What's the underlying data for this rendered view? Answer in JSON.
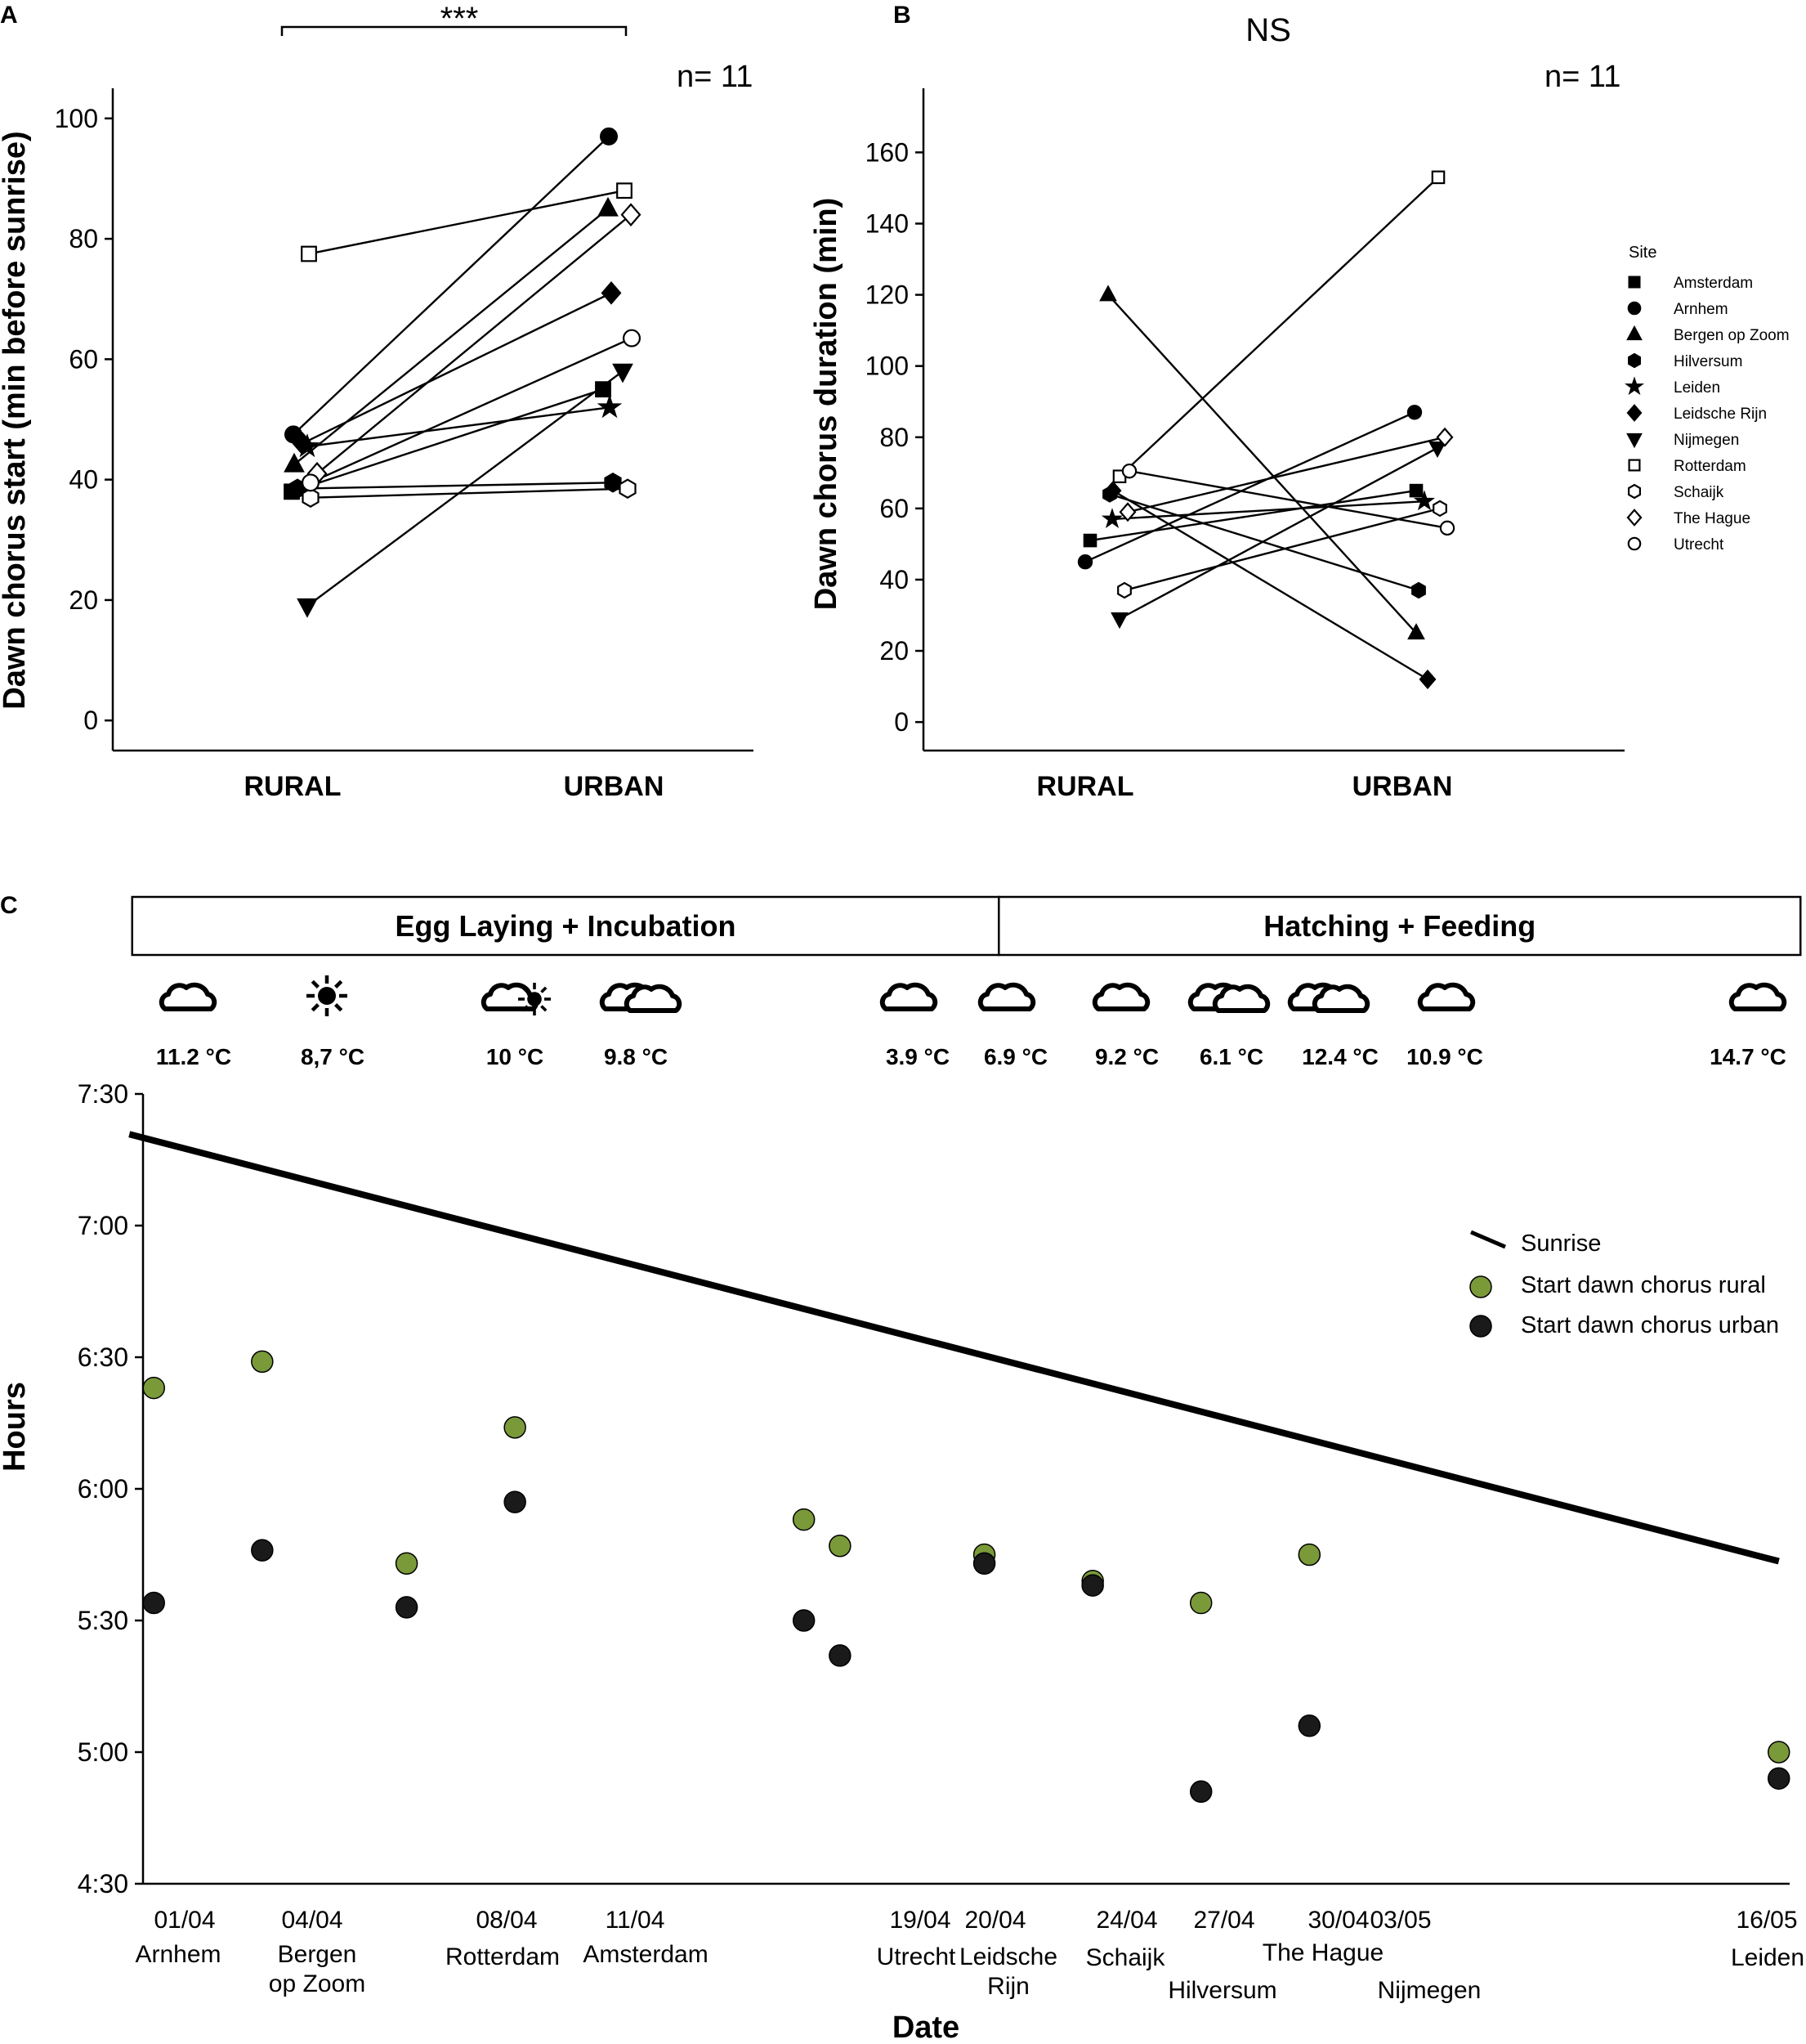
{
  "colors": {
    "ink": "#000000",
    "rural_green": "#7a9a3a",
    "urban_dark": "#1a1a1a",
    "open_fill": "#ffffff"
  },
  "chart_data": [
    {
      "panel": "A",
      "type": "scatter",
      "title": "",
      "xlabel": "",
      "ylabel": "Dawn chorus start (min before sunrise)",
      "categories": [
        "RURAL",
        "URBAN"
      ],
      "ylim": [
        -5,
        105
      ],
      "yticks": [
        0,
        20,
        40,
        60,
        80,
        100
      ],
      "annotation": "n= 11",
      "significance": "***",
      "series": [
        {
          "name": "Amsterdam",
          "marker": "square-filled",
          "values": [
            38,
            55
          ]
        },
        {
          "name": "Arnhem",
          "marker": "circle-filled",
          "values": [
            47.5,
            97
          ]
        },
        {
          "name": "Bergen op Zoom",
          "marker": "triangle-up-filled",
          "values": [
            42.5,
            85
          ]
        },
        {
          "name": "Hilversum",
          "marker": "hexagon-filled",
          "values": [
            38.5,
            39.5
          ]
        },
        {
          "name": "Leiden",
          "marker": "star-filled",
          "values": [
            45.5,
            52
          ]
        },
        {
          "name": "Leidsche Rijn",
          "marker": "diamond-filled",
          "values": [
            46,
            71
          ]
        },
        {
          "name": "Nijmegen",
          "marker": "triangle-down-filled",
          "values": [
            19,
            58
          ]
        },
        {
          "name": "Rotterdam",
          "marker": "square-open",
          "values": [
            77.5,
            88
          ]
        },
        {
          "name": "Schaijk",
          "marker": "hexagon-open",
          "values": [
            37,
            38.5
          ]
        },
        {
          "name": "The Hague",
          "marker": "diamond-open",
          "values": [
            41,
            84
          ]
        },
        {
          "name": "Utrecht",
          "marker": "circle-open",
          "values": [
            39.5,
            63.5
          ]
        }
      ]
    },
    {
      "panel": "B",
      "type": "scatter",
      "title": "NS",
      "xlabel": "",
      "ylabel": "Dawn chorus duration (min)",
      "categories": [
        "RURAL",
        "URBAN"
      ],
      "ylim": [
        -8,
        178
      ],
      "yticks": [
        0,
        20,
        40,
        60,
        80,
        100,
        120,
        140,
        160
      ],
      "annotation": "n= 11",
      "legend_title": "Site",
      "series": [
        {
          "name": "Amsterdam",
          "marker": "square-filled",
          "values": [
            51,
            65
          ]
        },
        {
          "name": "Arnhem",
          "marker": "circle-filled",
          "values": [
            45,
            87
          ]
        },
        {
          "name": "Bergen op Zoom",
          "marker": "triangle-up-filled",
          "values": [
            120,
            25
          ]
        },
        {
          "name": "Hilversum",
          "marker": "hexagon-filled",
          "values": [
            64,
            37
          ]
        },
        {
          "name": "Leiden",
          "marker": "star-filled",
          "values": [
            57,
            62
          ]
        },
        {
          "name": "Leidsche Rijn",
          "marker": "diamond-filled",
          "values": [
            65,
            12
          ]
        },
        {
          "name": "Nijmegen",
          "marker": "triangle-down-filled",
          "values": [
            29,
            77
          ]
        },
        {
          "name": "Rotterdam",
          "marker": "square-open",
          "values": [
            69,
            153
          ]
        },
        {
          "name": "Schaijk",
          "marker": "hexagon-open",
          "values": [
            37,
            60
          ]
        },
        {
          "name": "The Hague",
          "marker": "diamond-open",
          "values": [
            59,
            80
          ]
        },
        {
          "name": "Utrecht",
          "marker": "circle-open",
          "values": [
            70.5,
            54.5
          ]
        }
      ]
    },
    {
      "panel": "C",
      "type": "scatter",
      "title": "",
      "xlabel": "Date",
      "ylabel": "Hours",
      "ylim_minutes": [
        270,
        450
      ],
      "yticks": [
        {
          "min": 270,
          "label": "4:30"
        },
        {
          "min": 300,
          "label": "5:00"
        },
        {
          "min": 330,
          "label": "5:30"
        },
        {
          "min": 360,
          "label": "6:00"
        },
        {
          "min": 390,
          "label": "6:30"
        },
        {
          "min": 420,
          "label": "7:00"
        },
        {
          "min": 450,
          "label": "7:30"
        }
      ],
      "xlim_day": [
        -0.3,
        45.3
      ],
      "phases": [
        {
          "label": "Egg Laying + Incubation",
          "from_day": -0.6,
          "to_day": 23.4
        },
        {
          "label": "Hatching + Feeding",
          "from_day": 23.4,
          "to_day": 45.6
        }
      ],
      "sunrise_line": {
        "name": "Sunrise",
        "day": [
          0,
          45
        ],
        "minutes": [
          438.5,
          343.5
        ]
      },
      "legend": [
        "Sunrise",
        "Start dawn chorus rural",
        "Start dawn chorus urban"
      ],
      "points": [
        {
          "date": "01/04",
          "site": [
            "Arnhem"
          ],
          "day": 0,
          "rural": 383,
          "urban": 334,
          "weather": "cloud",
          "temp": "11.2 °C"
        },
        {
          "date": "04/04",
          "site": [
            "Bergen",
            "op Zoom"
          ],
          "day": 3,
          "rural": 389,
          "urban": 346,
          "weather": "sun",
          "temp": "8,7 °C"
        },
        {
          "date": "08/04",
          "site": [
            "Rotterdam"
          ],
          "day": 7,
          "rural": 343,
          "urban": 333,
          "weather": "partly",
          "temp": "10 °C"
        },
        {
          "date": "11/04",
          "site": [
            "Amsterdam"
          ],
          "day": 10,
          "rural": 374,
          "urban": 357,
          "weather": "clouds2",
          "temp": "9.8 °C"
        },
        {
          "date": "19/04",
          "site": [
            "Utrecht"
          ],
          "day": 18,
          "rural": 353,
          "urban": 330,
          "weather": "cloud",
          "temp": "3.9 °C"
        },
        {
          "date": "20/04",
          "site": [
            "Leidsche",
            "Rijn"
          ],
          "day": 19,
          "rural": 347,
          "urban": 322,
          "weather": "cloud",
          "temp": "6.9 °C"
        },
        {
          "date": "24/04",
          "site": [
            "Schaijk"
          ],
          "day": 23,
          "rural": 345,
          "urban": 343,
          "weather": "cloud",
          "temp": "9.2 °C"
        },
        {
          "date": "27/04",
          "site": [
            "Hilversum"
          ],
          "day": 26,
          "rural": 339,
          "urban": 338,
          "weather": "clouds2",
          "temp": "6.1 °C"
        },
        {
          "date": "30/04",
          "site": [
            "The Hague"
          ],
          "day": 29,
          "rural": 334,
          "urban": 291,
          "weather": "clouds2",
          "temp": "12.4 °C"
        },
        {
          "date": "03/05",
          "site": [
            "Nijmegen"
          ],
          "day": 32,
          "rural": 345,
          "urban": 306,
          "weather": "cloud",
          "temp": "10.9 °C"
        },
        {
          "date": "16/05",
          "site": [
            "Leiden"
          ],
          "day": 45,
          "rural": 300,
          "urban": 294,
          "weather": "cloud",
          "temp": "14.7 °C"
        }
      ]
    }
  ]
}
